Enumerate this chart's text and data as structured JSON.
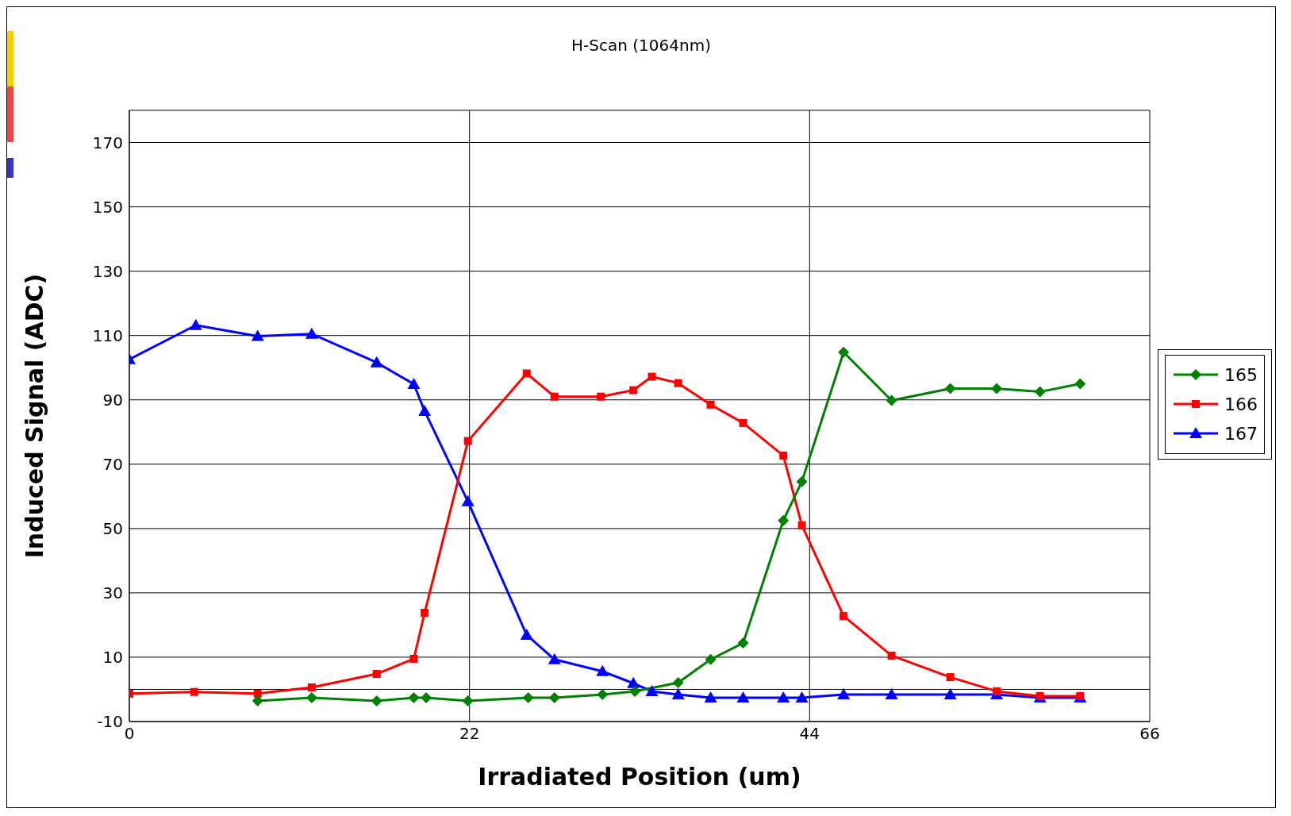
{
  "chart_data": {
    "type": "line",
    "title": "H-Scan (1064nm)",
    "xlabel": "Irradiated Position (um)",
    "ylabel": "Induced Signal (ADC)",
    "xlim": [
      0,
      66
    ],
    "xticks": [
      0,
      22,
      44,
      66
    ],
    "ylim": [
      -10,
      180
    ],
    "yticks": [
      -10,
      10,
      30,
      50,
      70,
      90,
      110,
      130,
      150,
      170
    ],
    "grid": true,
    "legend": "right",
    "ref_lines": [
      {
        "axis": "y",
        "value": 0,
        "color": "#000000"
      }
    ],
    "series": [
      {
        "name": "165",
        "color": "#008000",
        "marker": "diamond",
        "x": [
          8.3,
          11.8,
          16.0,
          18.4,
          19.2,
          21.9,
          25.8,
          27.5,
          30.6,
          32.7,
          35.5,
          37.6,
          39.7,
          42.3,
          43.5,
          46.2,
          49.3,
          53.1,
          56.1,
          58.9,
          61.5
        ],
        "values": [
          -3.6,
          -2.6,
          -3.6,
          -2.6,
          -2.6,
          -3.6,
          -2.6,
          -2.6,
          -1.6,
          -0.6,
          2.1,
          9.3,
          14.4,
          52.5,
          64.6,
          104.8,
          89.8,
          93.5,
          93.5,
          92.5,
          95.0
        ]
      },
      {
        "name": "166",
        "color": "#ff0000",
        "marker": "square",
        "x": [
          0,
          4.2,
          8.3,
          11.8,
          16.0,
          18.4,
          19.1,
          21.9,
          25.7,
          27.5,
          30.5,
          32.6,
          33.8,
          35.5,
          37.6,
          39.7,
          42.3,
          43.5,
          46.2,
          49.3,
          53.1,
          56.1,
          58.9,
          61.5
        ],
        "values": [
          -1.3,
          -0.8,
          -1.3,
          0.6,
          4.8,
          9.5,
          23.8,
          77.2,
          98.2,
          91.0,
          91.0,
          93.0,
          97.2,
          95.2,
          88.5,
          82.8,
          72.7,
          51.0,
          22.8,
          10.5,
          3.8,
          -0.6,
          -2.1,
          -2.1
        ]
      },
      {
        "name": "167",
        "color": "#0000ff",
        "marker": "triangle",
        "x": [
          0,
          4.3,
          8.3,
          11.8,
          16.0,
          18.4,
          19.1,
          21.9,
          25.7,
          27.5,
          30.6,
          32.6,
          33.8,
          35.5,
          37.6,
          39.7,
          42.3,
          43.5,
          46.2,
          49.3,
          53.1,
          56.1,
          58.9,
          61.5
        ],
        "values": [
          102.6,
          113.2,
          109.8,
          110.5,
          101.6,
          94.9,
          86.5,
          58.4,
          16.9,
          9.3,
          5.6,
          1.9,
          -0.6,
          -1.6,
          -2.6,
          -2.6,
          -2.6,
          -2.6,
          -1.6,
          -1.6,
          -1.6,
          -1.6,
          -2.6,
          -2.6
        ]
      }
    ]
  }
}
